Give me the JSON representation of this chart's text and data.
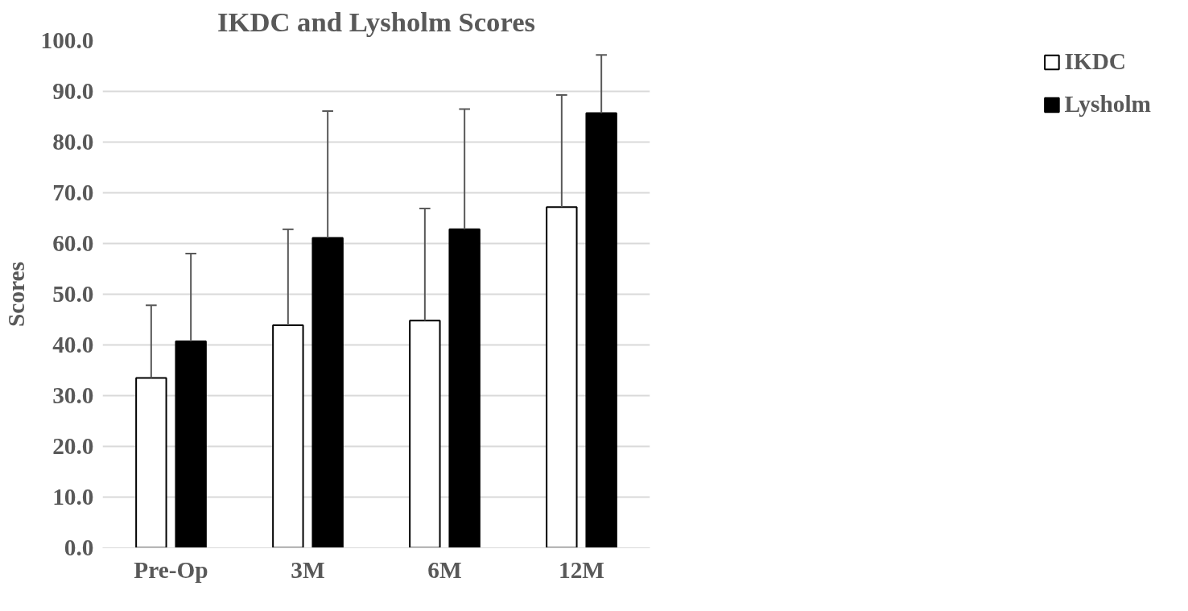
{
  "chart_data": {
    "type": "bar",
    "title": "IKDC and Lysholm Scores",
    "ylabel": "Scores",
    "categories": [
      "Pre-Op",
      "3M",
      "6M",
      "12M"
    ],
    "series": [
      {
        "name": "IKDC",
        "color": "#ffffff",
        "values": [
          33.5,
          43.9,
          44.8,
          67.2
        ],
        "errors": [
          [
            33.5,
            47.8
          ],
          [
            43.9,
            62.8
          ],
          [
            44.8,
            66.9
          ],
          [
            67.2,
            89.3
          ]
        ]
      },
      {
        "name": "Lysholm",
        "color": "#000000",
        "values": [
          40.7,
          61.1,
          62.8,
          85.7
        ],
        "errors": [
          [
            40.7,
            58.0
          ],
          [
            61.1,
            86.1
          ],
          [
            62.8,
            86.5
          ],
          [
            85.7,
            97.2
          ]
        ]
      }
    ],
    "ylim": [
      0,
      100
    ],
    "yticks": [
      {
        "value": 0,
        "label": "0.0"
      },
      {
        "value": 10,
        "label": "10.0"
      },
      {
        "value": 20,
        "label": "20.0"
      },
      {
        "value": 30,
        "label": "30.0"
      },
      {
        "value": 40,
        "label": "40.0"
      },
      {
        "value": 50,
        "label": "50.0"
      },
      {
        "value": 60,
        "label": "60.0"
      },
      {
        "value": 70,
        "label": "70.0"
      },
      {
        "value": 80,
        "label": "80.0"
      },
      {
        "value": 90,
        "label": "90.0"
      },
      {
        "value": 100,
        "label": "100.0"
      }
    ],
    "grid": "y",
    "legend": "right"
  }
}
